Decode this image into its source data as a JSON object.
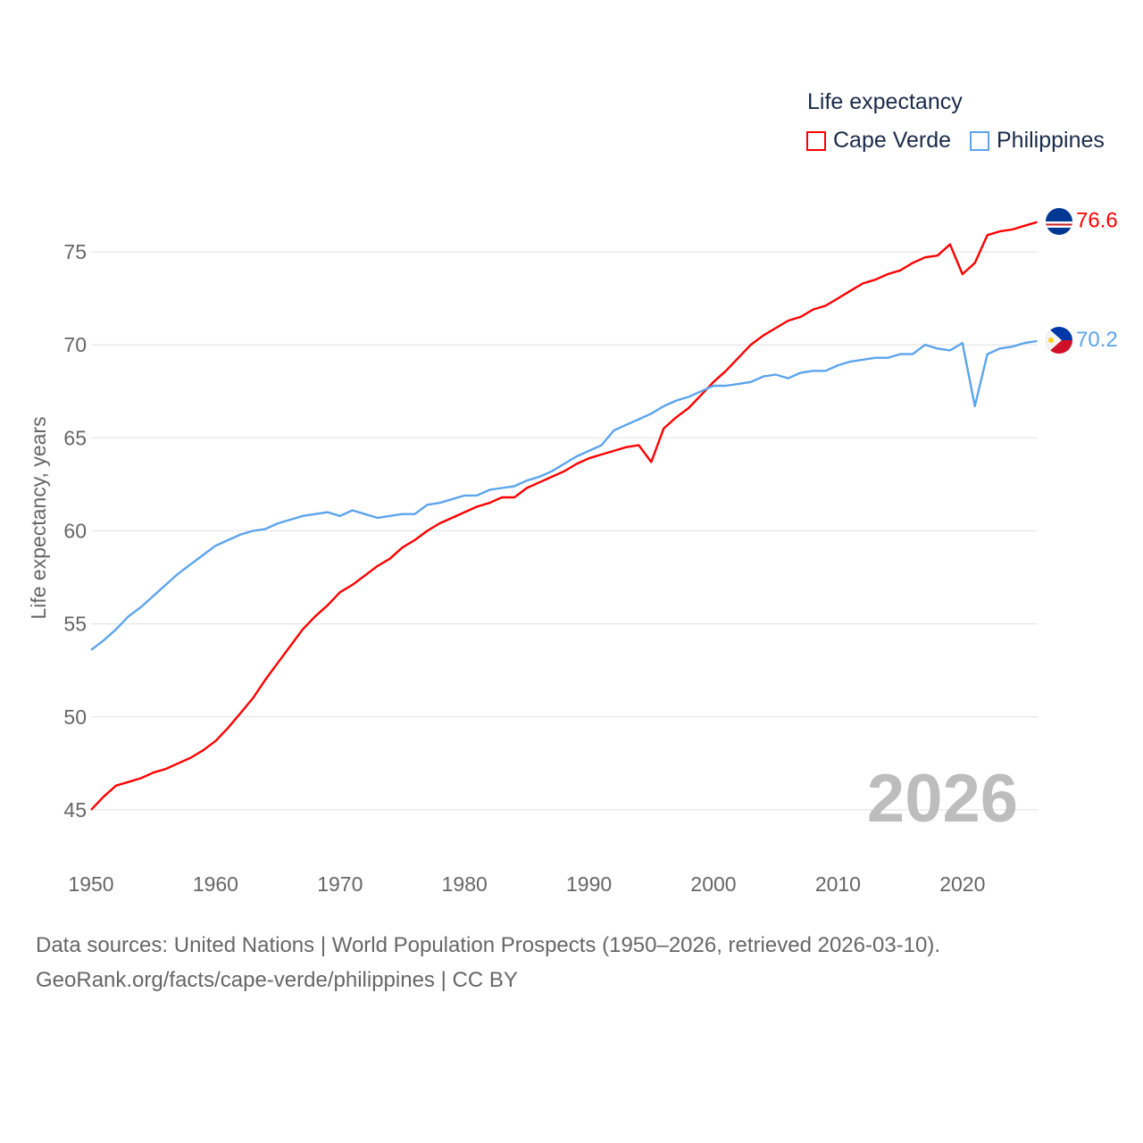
{
  "chart_data": {
    "type": "line",
    "title": "",
    "ylabel": "Life expectancy, years",
    "xlabel": "",
    "ylim": [
      43,
      77.5
    ],
    "xlim": [
      1950,
      2026
    ],
    "yticks": [
      45,
      50,
      55,
      60,
      65,
      70,
      75
    ],
    "xticks": [
      1950,
      1960,
      1970,
      1980,
      1990,
      2000,
      2010,
      2020
    ],
    "grid": true,
    "legend_title": "Life expectancy",
    "legend_position": "top-right",
    "year_label": "2026",
    "x": [
      1950,
      1951,
      1952,
      1953,
      1954,
      1955,
      1956,
      1957,
      1958,
      1959,
      1960,
      1961,
      1962,
      1963,
      1964,
      1965,
      1966,
      1967,
      1968,
      1969,
      1970,
      1971,
      1972,
      1973,
      1974,
      1975,
      1976,
      1977,
      1978,
      1979,
      1980,
      1981,
      1982,
      1983,
      1984,
      1985,
      1986,
      1987,
      1988,
      1989,
      1990,
      1991,
      1992,
      1993,
      1994,
      1995,
      1996,
      1997,
      1998,
      1999,
      2000,
      2001,
      2002,
      2003,
      2004,
      2005,
      2006,
      2007,
      2008,
      2009,
      2010,
      2011,
      2012,
      2013,
      2014,
      2015,
      2016,
      2017,
      2018,
      2019,
      2020,
      2021,
      2022,
      2023,
      2024,
      2025,
      2026
    ],
    "series": [
      {
        "name": "Cape Verde",
        "color": "#ff0000",
        "end_label": "76.6",
        "values": [
          45.0,
          45.7,
          46.3,
          46.5,
          46.7,
          47.0,
          47.2,
          47.5,
          47.8,
          48.2,
          48.7,
          49.4,
          50.2,
          51.0,
          52.0,
          52.9,
          53.8,
          54.7,
          55.4,
          56.0,
          56.7,
          57.1,
          57.6,
          58.1,
          58.5,
          59.1,
          59.5,
          60.0,
          60.4,
          60.7,
          61.0,
          61.3,
          61.5,
          61.8,
          61.8,
          62.3,
          62.6,
          62.9,
          63.2,
          63.6,
          63.9,
          64.1,
          64.3,
          64.5,
          64.6,
          63.7,
          65.5,
          66.1,
          66.6,
          67.3,
          68.0,
          68.6,
          69.3,
          70.0,
          70.5,
          70.9,
          71.3,
          71.5,
          71.9,
          72.1,
          72.5,
          72.9,
          73.3,
          73.5,
          73.8,
          74.0,
          74.4,
          74.7,
          74.8,
          75.4,
          73.8,
          74.4,
          75.9,
          76.1,
          76.2,
          76.4,
          76.6
        ]
      },
      {
        "name": "Philippines",
        "color": "#5ba4ec",
        "end_label": "70.2",
        "values": [
          53.6,
          54.1,
          54.7,
          55.4,
          55.9,
          56.5,
          57.1,
          57.7,
          58.2,
          58.7,
          59.2,
          59.5,
          59.8,
          60.0,
          60.1,
          60.4,
          60.6,
          60.8,
          60.9,
          61.0,
          60.8,
          61.1,
          60.9,
          60.7,
          60.8,
          60.9,
          60.9,
          61.4,
          61.5,
          61.7,
          61.9,
          61.9,
          62.2,
          62.3,
          62.4,
          62.7,
          62.9,
          63.2,
          63.6,
          64.0,
          64.3,
          64.6,
          65.4,
          65.7,
          66.0,
          66.3,
          66.7,
          67.0,
          67.2,
          67.5,
          67.8,
          67.8,
          67.9,
          68.0,
          68.3,
          68.4,
          68.2,
          68.5,
          68.6,
          68.6,
          68.9,
          69.1,
          69.2,
          69.3,
          69.3,
          69.5,
          69.5,
          70.0,
          69.8,
          69.7,
          70.1,
          66.7,
          69.5,
          69.8,
          69.9,
          70.1,
          70.2
        ]
      }
    ]
  },
  "footer": {
    "line1": "Data sources: United Nations | World Population Prospects (1950–2026, retrieved 2026-03-10).",
    "line2": "GeoRank.org/facts/cape-verde/philippines | CC BY"
  }
}
